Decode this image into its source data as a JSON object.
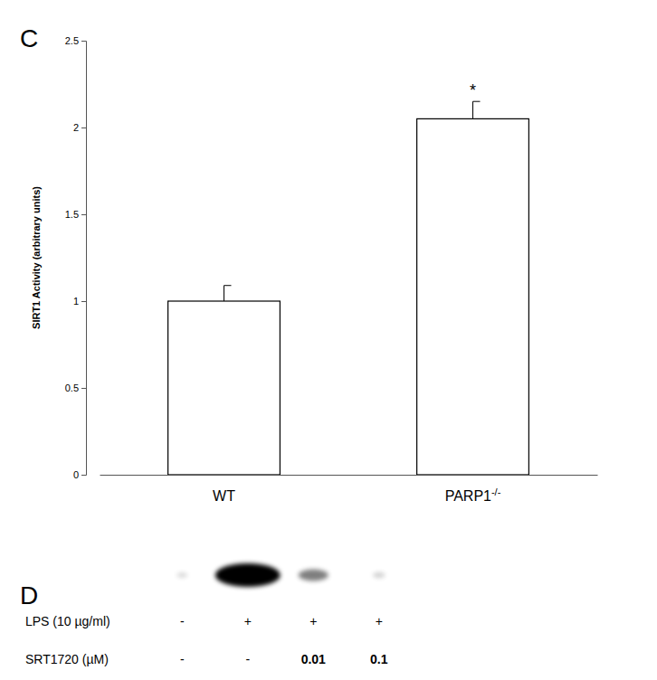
{
  "chart_data": [
    {
      "type": "bar",
      "title": "C",
      "y_label": "SIRT1 Activity (arbitrary units)",
      "categories": [
        "WT",
        "PARP1-/-"
      ],
      "values": [
        1.0,
        2.05
      ],
      "errors": [
        0.09,
        0.1
      ],
      "color": "#ffffff",
      "ylim": [
        0,
        2.5
      ],
      "yticks": [
        0,
        0.5,
        1,
        1.5,
        2,
        2.5
      ],
      "grid": false,
      "annotations": [
        {
          "text": "*",
          "category": "PARP1-/-"
        }
      ]
    },
    {
      "type": "blot",
      "title": "D",
      "categories": [
        null,
        null,
        null,
        null
      ],
      "values": [
        0,
        1,
        0.35,
        0.03
      ],
      "color": "#000000",
      "tick_labels": false,
      "rows": [
        {
          "label": "LPS (10 µg/ml)",
          "values": [
            "-",
            "+",
            "+",
            "+"
          ]
        },
        {
          "label": "SRT1720 (µM)",
          "values": [
            "-",
            "-",
            "0.01",
            "0.1"
          ]
        }
      ]
    }
  ]
}
